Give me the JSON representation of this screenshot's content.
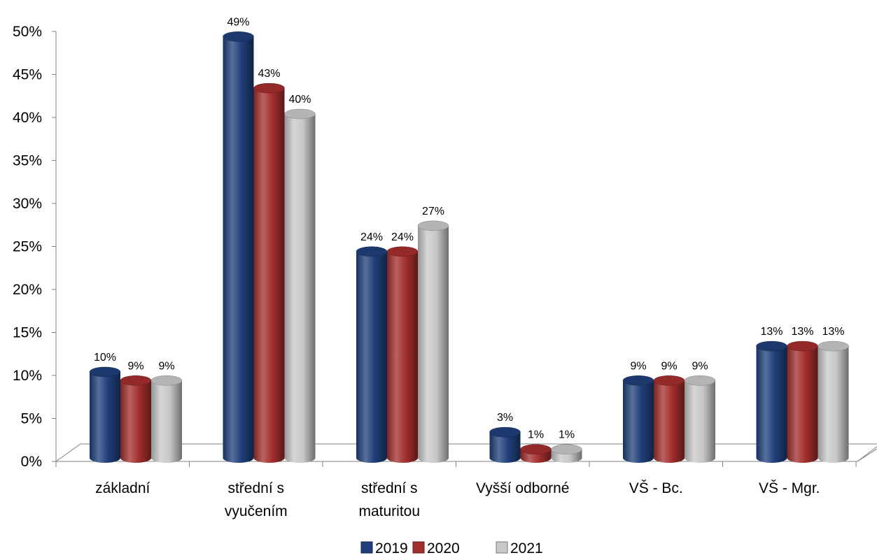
{
  "chart_data": {
    "type": "bar",
    "categories": [
      [
        "základní"
      ],
      [
        "střední s",
        "vyučením"
      ],
      [
        "střední s",
        "maturitou"
      ],
      [
        "Vyšší odborné"
      ],
      [
        "VŠ - Bc."
      ],
      [
        "VŠ - Mgr."
      ]
    ],
    "series": [
      {
        "name": "2019",
        "color": "#1f3f7a",
        "values": [
          10,
          49,
          24,
          3,
          9,
          13
        ],
        "labels": [
          "10%",
          "49%",
          "24%",
          "3%",
          "9%",
          "13%"
        ]
      },
      {
        "name": "2020",
        "color": "#a32e2e",
        "values": [
          9,
          43,
          24,
          1,
          9,
          13
        ],
        "labels": [
          "9%",
          "43%",
          "24%",
          "1%",
          "9%",
          "13%"
        ]
      },
      {
        "name": "2021",
        "color": "#c8c8c8",
        "values": [
          9,
          40,
          27,
          1,
          9,
          13
        ],
        "labels": [
          "9%",
          "40%",
          "27%",
          "1%",
          "9%",
          "13%"
        ]
      }
    ],
    "y_ticks": [
      "0%",
      "5%",
      "10%",
      "15%",
      "20%",
      "25%",
      "30%",
      "35%",
      "40%",
      "45%",
      "50%"
    ],
    "ylim": [
      0,
      50
    ],
    "title": "",
    "xlabel": "",
    "ylabel": "",
    "legend_position": "bottom",
    "grid": false
  }
}
